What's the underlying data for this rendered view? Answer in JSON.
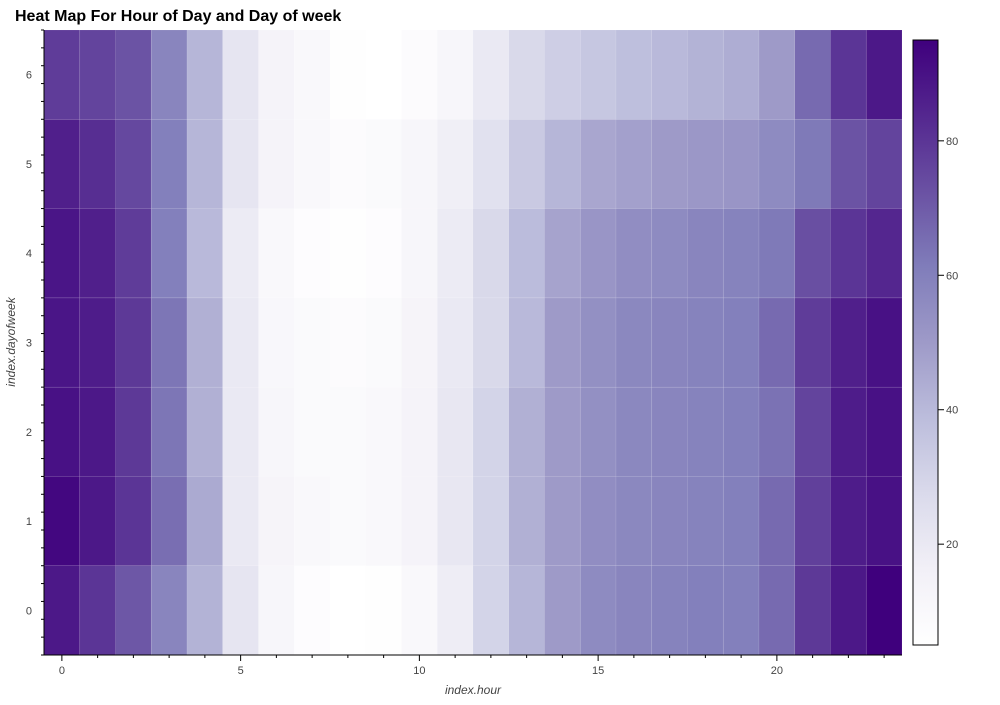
{
  "chart_data": {
    "type": "heatmap",
    "title": "Heat Map For Hour of Day and Day of week",
    "xlabel": "index.hour",
    "ylabel": "index.dayofweek",
    "x": [
      0,
      1,
      2,
      3,
      4,
      5,
      6,
      7,
      8,
      9,
      10,
      11,
      12,
      13,
      14,
      15,
      16,
      17,
      18,
      19,
      20,
      21,
      22,
      23
    ],
    "y": [
      0,
      1,
      2,
      3,
      4,
      5,
      6
    ],
    "xticks": [
      0,
      5,
      10,
      15,
      20
    ],
    "yticks": [
      0,
      1,
      2,
      3,
      4,
      5,
      6
    ],
    "xlim": [
      -0.5,
      23.5
    ],
    "ylim": [
      -0.5,
      6.5
    ],
    "colorbar": {
      "ticks": [
        20,
        40,
        60,
        80
      ],
      "range": [
        5,
        95
      ],
      "colors": [
        "#ffffff",
        "#f2f0f7",
        "#dadaeb",
        "#bcbddc",
        "#9e9ac8",
        "#807dba",
        "#6a51a3",
        "#54278f",
        "#3f007d"
      ]
    },
    "values": [
      [
        88,
        80,
        71,
        58,
        42,
        22,
        12,
        7,
        5,
        6,
        10,
        18,
        30,
        41,
        50,
        56,
        58,
        59,
        60,
        60,
        66,
        79,
        88,
        95
      ],
      [
        93,
        88,
        80,
        65,
        45,
        20,
        13,
        10,
        9,
        10,
        14,
        21,
        30,
        43,
        50,
        55,
        57,
        58,
        59,
        60,
        66,
        77,
        87,
        90
      ],
      [
        90,
        88,
        79,
        63,
        43,
        20,
        12,
        9,
        9,
        10,
        14,
        21,
        30,
        43,
        50,
        54,
        57,
        58,
        59,
        60,
        64,
        76,
        87,
        90
      ],
      [
        89,
        87,
        79,
        63,
        43,
        20,
        11,
        9,
        8,
        9,
        13,
        20,
        28,
        40,
        50,
        54,
        57,
        58,
        59,
        60,
        66,
        78,
        86,
        90
      ],
      [
        89,
        86,
        78,
        60,
        40,
        19,
        10,
        7,
        6,
        7,
        12,
        19,
        28,
        39,
        47,
        52,
        55,
        56,
        58,
        59,
        62,
        73,
        80,
        84
      ],
      [
        86,
        82,
        75,
        60,
        41,
        22,
        14,
        10,
        8,
        9,
        12,
        17,
        24,
        34,
        41,
        46,
        48,
        50,
        51,
        52,
        56,
        62,
        72,
        76
      ],
      [
        78,
        76,
        72,
        58,
        41,
        22,
        14,
        10,
        6,
        5,
        8,
        12,
        20,
        28,
        32,
        35,
        38,
        40,
        42,
        44,
        50,
        66,
        80,
        88
      ]
    ]
  }
}
